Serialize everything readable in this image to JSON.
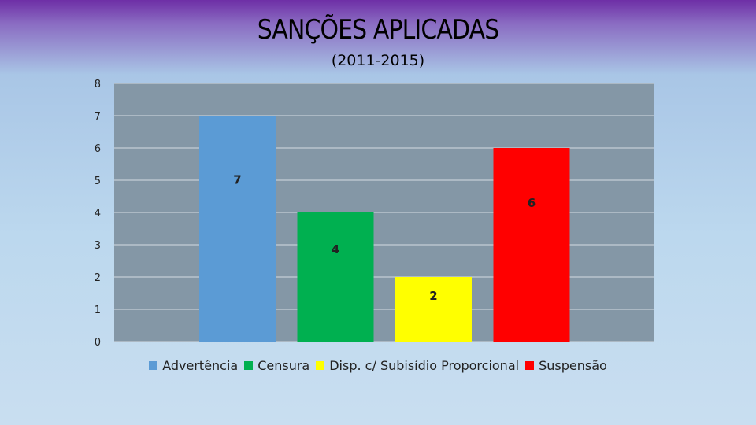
{
  "chart_data": {
    "type": "bar",
    "title": "SANÇÕES APLICADAS",
    "subtitle": "(2011-2015)",
    "categories": [
      "Advertência",
      "Censura",
      "Disp. c/ Subisídio Proporcional",
      "Suspensão"
    ],
    "values": [
      7,
      4,
      2,
      6
    ],
    "data_labels": [
      "7",
      "4",
      "2",
      "6"
    ],
    "colors": [
      "#5b9bd5",
      "#00b050",
      "#ffff00",
      "#ff0000"
    ],
    "y_ticks": [
      "0",
      "1",
      "2",
      "3",
      "4",
      "5",
      "6",
      "7",
      "8"
    ],
    "ylim": [
      0,
      8
    ],
    "grid": true,
    "legend_position": "bottom",
    "plot_background": "#8497a6"
  }
}
